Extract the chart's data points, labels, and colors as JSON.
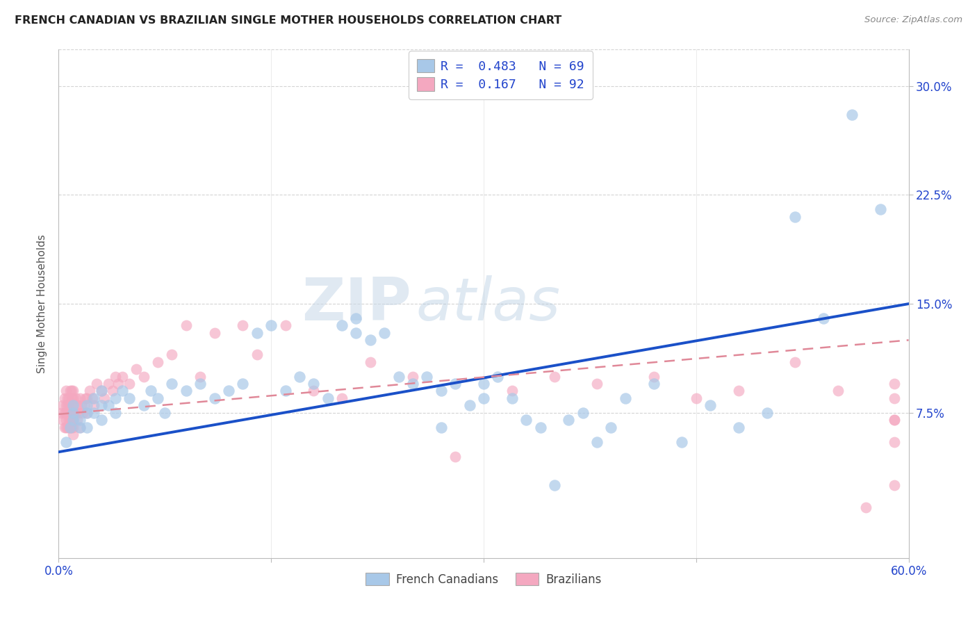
{
  "title": "FRENCH CANADIAN VS BRAZILIAN SINGLE MOTHER HOUSEHOLDS CORRELATION CHART",
  "source": "Source: ZipAtlas.com",
  "ylabel": "Single Mother Households",
  "watermark_zip": "ZIP",
  "watermark_atlas": "atlas",
  "xlim": [
    0.0,
    0.6
  ],
  "ylim": [
    -0.025,
    0.325
  ],
  "yticks": [
    0.075,
    0.15,
    0.225,
    0.3
  ],
  "ytick_labels": [
    "7.5%",
    "15.0%",
    "22.5%",
    "30.0%"
  ],
  "xtick_positions": [
    0.0,
    0.15,
    0.3,
    0.45,
    0.6
  ],
  "xtick_labels": [
    "0.0%",
    "",
    "",
    "",
    "60.0%"
  ],
  "french_R": 0.483,
  "french_N": 69,
  "brazilian_R": 0.167,
  "brazilian_N": 92,
  "french_color": "#a8c8e8",
  "french_edge_color": "#90b8d8",
  "brazilian_color": "#f4a8c0",
  "brazilian_edge_color": "#e498b0",
  "french_line_color": "#1a50c8",
  "brazilian_line_color": "#e08898",
  "background_color": "#ffffff",
  "grid_color": "#d0d0d0",
  "title_color": "#222222",
  "axis_label_color": "#555555",
  "legend_text_color": "#2244cc",
  "tick_color": "#2244cc",
  "source_color": "#888888",
  "french_scatter_x": [
    0.005,
    0.008,
    0.01,
    0.01,
    0.01,
    0.015,
    0.015,
    0.02,
    0.02,
    0.02,
    0.025,
    0.025,
    0.03,
    0.03,
    0.03,
    0.035,
    0.04,
    0.04,
    0.045,
    0.05,
    0.06,
    0.065,
    0.07,
    0.075,
    0.08,
    0.09,
    0.1,
    0.11,
    0.12,
    0.13,
    0.14,
    0.15,
    0.16,
    0.17,
    0.18,
    0.19,
    0.2,
    0.21,
    0.21,
    0.22,
    0.23,
    0.24,
    0.25,
    0.26,
    0.27,
    0.27,
    0.28,
    0.29,
    0.3,
    0.3,
    0.31,
    0.32,
    0.33,
    0.34,
    0.35,
    0.36,
    0.37,
    0.38,
    0.39,
    0.4,
    0.42,
    0.44,
    0.46,
    0.48,
    0.5,
    0.52,
    0.54,
    0.56,
    0.58
  ],
  "french_scatter_y": [
    0.055,
    0.065,
    0.07,
    0.075,
    0.08,
    0.07,
    0.065,
    0.075,
    0.065,
    0.08,
    0.075,
    0.085,
    0.07,
    0.08,
    0.09,
    0.08,
    0.075,
    0.085,
    0.09,
    0.085,
    0.08,
    0.09,
    0.085,
    0.075,
    0.095,
    0.09,
    0.095,
    0.085,
    0.09,
    0.095,
    0.13,
    0.135,
    0.09,
    0.1,
    0.095,
    0.085,
    0.135,
    0.14,
    0.13,
    0.125,
    0.13,
    0.1,
    0.095,
    0.1,
    0.065,
    0.09,
    0.095,
    0.08,
    0.085,
    0.095,
    0.1,
    0.085,
    0.07,
    0.065,
    0.025,
    0.07,
    0.075,
    0.055,
    0.065,
    0.085,
    0.095,
    0.055,
    0.08,
    0.065,
    0.075,
    0.21,
    0.14,
    0.28,
    0.215
  ],
  "brazilian_scatter_x": [
    0.002,
    0.003,
    0.003,
    0.004,
    0.004,
    0.004,
    0.005,
    0.005,
    0.005,
    0.005,
    0.005,
    0.006,
    0.006,
    0.006,
    0.006,
    0.007,
    0.007,
    0.007,
    0.007,
    0.007,
    0.008,
    0.008,
    0.008,
    0.008,
    0.008,
    0.009,
    0.009,
    0.009,
    0.009,
    0.009,
    0.01,
    0.01,
    0.01,
    0.01,
    0.01,
    0.01,
    0.01,
    0.012,
    0.012,
    0.013,
    0.013,
    0.014,
    0.015,
    0.015,
    0.016,
    0.017,
    0.018,
    0.019,
    0.02,
    0.02,
    0.022,
    0.024,
    0.025,
    0.027,
    0.03,
    0.032,
    0.035,
    0.038,
    0.04,
    0.042,
    0.045,
    0.05,
    0.055,
    0.06,
    0.07,
    0.08,
    0.09,
    0.1,
    0.11,
    0.13,
    0.14,
    0.16,
    0.18,
    0.2,
    0.22,
    0.25,
    0.28,
    0.32,
    0.35,
    0.38,
    0.42,
    0.45,
    0.48,
    0.52,
    0.55,
    0.57,
    0.59,
    0.59,
    0.59,
    0.59,
    0.59,
    0.59
  ],
  "brazilian_scatter_y": [
    0.075,
    0.07,
    0.08,
    0.065,
    0.075,
    0.085,
    0.07,
    0.075,
    0.065,
    0.08,
    0.09,
    0.065,
    0.075,
    0.08,
    0.085,
    0.065,
    0.07,
    0.075,
    0.08,
    0.085,
    0.065,
    0.07,
    0.075,
    0.08,
    0.09,
    0.065,
    0.07,
    0.075,
    0.085,
    0.09,
    0.06,
    0.065,
    0.07,
    0.075,
    0.08,
    0.085,
    0.09,
    0.075,
    0.085,
    0.07,
    0.08,
    0.075,
    0.065,
    0.085,
    0.08,
    0.075,
    0.08,
    0.085,
    0.075,
    0.085,
    0.09,
    0.085,
    0.08,
    0.095,
    0.09,
    0.085,
    0.095,
    0.09,
    0.1,
    0.095,
    0.1,
    0.095,
    0.105,
    0.1,
    0.11,
    0.115,
    0.135,
    0.1,
    0.13,
    0.135,
    0.115,
    0.135,
    0.09,
    0.085,
    0.11,
    0.1,
    0.045,
    0.09,
    0.1,
    0.095,
    0.1,
    0.085,
    0.09,
    0.11,
    0.09,
    0.01,
    0.07,
    0.055,
    0.085,
    0.095,
    0.07,
    0.025
  ]
}
